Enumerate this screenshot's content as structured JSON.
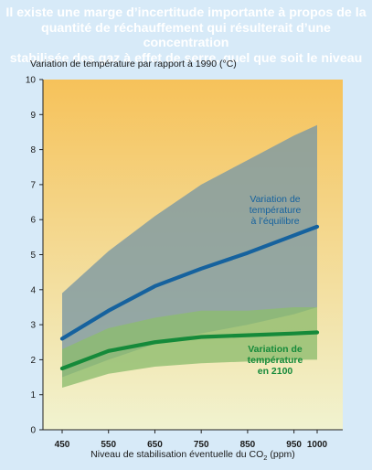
{
  "title": "Il existe une marge d’incertitude importante à propos de la quantité de réchauffement qui résulterait d’une concentration stabilisée des gaz à effet de serre, quel que soit le niveau",
  "title_lines": [
    "Il existe une marge d’incertitude importante à propos de la",
    "quantité de réchauffement qui résulterait d’une concentration",
    "stabilisée des gaz à effet de serre, quel que soit le niveau"
  ],
  "colors": {
    "background": "#d7eaf8",
    "title": "#ffffff",
    "plot_top": "#f6c25a",
    "plot_bottom": "#f1f3d0",
    "equilibrium_band": "#7f9aa2",
    "equilibrium_line": "#16629e",
    "y2100_band": "#8dbd6e",
    "y2100_line": "#158a3a"
  },
  "chart_data": {
    "type": "area",
    "ylabel": "Variation de température par rapport à 1990 (°C)",
    "xlabel": "Niveau de stabilisation éventuelle du CO",
    "xlabel_subscript": "2",
    "xlabel_suffix": " (ppm)",
    "x": [
      450,
      550,
      650,
      750,
      850,
      950,
      1000
    ],
    "xlim": [
      450,
      1000
    ],
    "ylim": [
      0,
      10
    ],
    "x_ticks": [
      "450",
      "550",
      "650",
      "750",
      "850",
      "950",
      "1000"
    ],
    "y_ticks": [
      "0",
      "1",
      "2",
      "3",
      "4",
      "5",
      "6",
      "7",
      "8",
      "9",
      "10"
    ],
    "grid": false,
    "series": [
      {
        "name": "Variation de température à l’équilibre",
        "label_lines": [
          "Variation de",
          "température",
          "à l’équilibre"
        ],
        "values": [
          2.6,
          3.4,
          4.1,
          4.6,
          5.05,
          5.55,
          5.8
        ],
        "upper": [
          3.9,
          5.1,
          6.1,
          7.0,
          7.7,
          8.4,
          8.7
        ],
        "lower": [
          1.5,
          2.0,
          2.45,
          2.75,
          3.0,
          3.3,
          3.5
        ]
      },
      {
        "name": "Variation de température en 2100",
        "label_lines": [
          "Variation de",
          "température",
          "en 2100"
        ],
        "values": [
          1.75,
          2.25,
          2.5,
          2.65,
          2.7,
          2.75,
          2.78
        ],
        "upper": [
          2.3,
          2.9,
          3.2,
          3.4,
          3.4,
          3.5,
          3.5
        ],
        "lower": [
          1.2,
          1.6,
          1.8,
          1.9,
          1.95,
          2.0,
          2.0
        ]
      }
    ]
  }
}
